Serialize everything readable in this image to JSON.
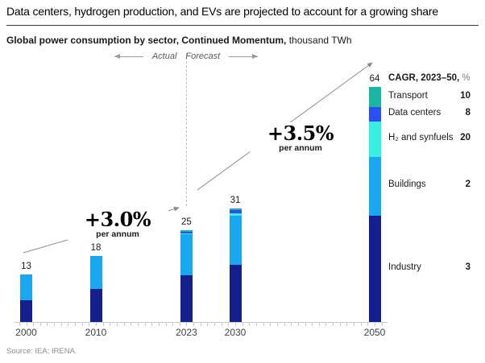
{
  "header": {
    "title": "Data centers, hydrogen production, and EVs are projected to account for a growing share",
    "subtitle_bold": "Global power consumption by sector, Continued Momentum,",
    "subtitle_unit": "thousand TWh"
  },
  "phase_labels": {
    "actual": "Actual",
    "forecast": "Forecast"
  },
  "legend": {
    "heading_bold": "CAGR, 2023–50,",
    "heading_unit": "%"
  },
  "source": "Source: IEA; IRENA",
  "colors": {
    "industry": "#141e8c",
    "buildings": "#19a7f2",
    "h2_synfuels": "#38f0e1",
    "data_centers": "#2b4ff2",
    "transport": "#1ab5a3",
    "axis_gray": "#c9c9c9",
    "arrow_gray": "#8c8c8c"
  },
  "chart_data": {
    "type": "bar",
    "stacked": true,
    "title": "Global power consumption by sector, Continued Momentum",
    "unit": "thousand TWh",
    "x": [
      2000,
      2010,
      2023,
      2030,
      2050
    ],
    "x_axis": {
      "labeled": [
        2000,
        2010,
        2023,
        2030,
        2050
      ],
      "minor_tick_interval_years": 1,
      "range": [
        1999,
        2052
      ]
    },
    "totals": [
      13,
      18,
      25,
      31,
      64
    ],
    "series": [
      {
        "name": "Industry",
        "cagr_2023_50_pct": 3,
        "color_key": "industry",
        "values": [
          6,
          9,
          12.8,
          15.5,
          29
        ]
      },
      {
        "name": "Buildings",
        "cagr_2023_50_pct": 2,
        "color_key": "buildings",
        "values": [
          7,
          9,
          11,
          13.5,
          16
        ]
      },
      {
        "name": "H₂ and synfuels",
        "cagr_2023_50_pct": 20,
        "color_key": "h2_synfuels",
        "values": [
          0,
          0,
          0.3,
          0.5,
          9.5
        ]
      },
      {
        "name": "Data centers",
        "cagr_2023_50_pct": 8,
        "color_key": "data_centers",
        "values": [
          0,
          0,
          0.5,
          1,
          4
        ]
      },
      {
        "name": "Transport",
        "cagr_2023_50_pct": 10,
        "color_key": "transport",
        "values": [
          0,
          0,
          0.4,
          0.5,
          5.5
        ]
      }
    ],
    "growth_annotations": [
      {
        "span": "2000–2023",
        "text": "+3.0%",
        "sub": "per annum"
      },
      {
        "span": "2023–2050",
        "text": "+3.5%",
        "sub": "per annum"
      }
    ],
    "legend_title": "CAGR, 2023–50, %",
    "legend_position": "right"
  }
}
